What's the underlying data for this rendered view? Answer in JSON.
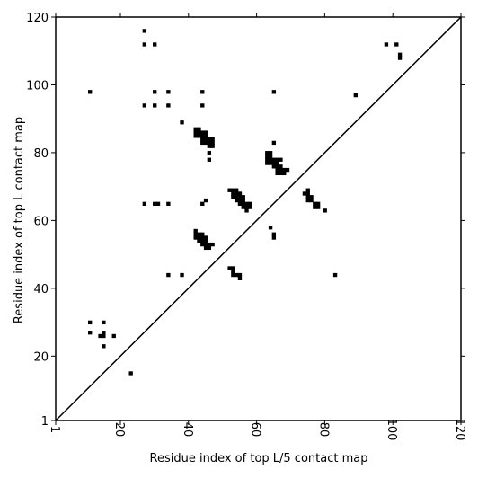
{
  "chart_data": {
    "type": "scatter",
    "title": "",
    "xlabel": "Residue index of top L/5 contact map",
    "ylabel": "Residue index of top L contact map",
    "xlim": [
      1,
      120
    ],
    "ylim": [
      1,
      120
    ],
    "xticks": [
      1,
      20,
      40,
      60,
      80,
      100,
      120
    ],
    "yticks": [
      1,
      20,
      40,
      60,
      80,
      100,
      120
    ],
    "x_tick_rotation": "vertical",
    "grid": false,
    "legend": "none",
    "marker": "square",
    "marker_color": "#000000",
    "diagonal": {
      "from": [
        1,
        1
      ],
      "to": [
        120,
        120
      ],
      "color": "#000000"
    },
    "series": [
      {
        "points": [
          [
            27,
            116
          ],
          [
            27,
            112
          ],
          [
            30,
            112
          ],
          [
            98,
            112
          ],
          [
            101,
            112
          ],
          [
            102,
            109
          ],
          [
            102,
            108
          ],
          [
            11,
            98
          ],
          [
            30,
            98
          ],
          [
            34,
            98
          ],
          [
            44,
            98
          ],
          [
            65,
            98
          ],
          [
            89,
            97
          ],
          [
            27,
            94
          ],
          [
            30,
            94
          ],
          [
            34,
            94
          ],
          [
            44,
            94
          ],
          [
            38,
            89
          ],
          [
            42,
            87
          ],
          [
            43,
            87
          ],
          [
            42,
            86
          ],
          [
            43,
            86
          ],
          [
            44,
            86
          ],
          [
            45,
            86
          ],
          [
            42,
            85
          ],
          [
            43,
            85
          ],
          [
            44,
            85
          ],
          [
            45,
            85
          ],
          [
            44,
            84
          ],
          [
            45,
            84
          ],
          [
            46,
            84
          ],
          [
            47,
            84
          ],
          [
            44,
            83
          ],
          [
            45,
            83
          ],
          [
            46,
            83
          ],
          [
            47,
            83
          ],
          [
            65,
            83
          ],
          [
            46,
            82
          ],
          [
            47,
            82
          ],
          [
            46,
            80
          ],
          [
            46,
            78
          ],
          [
            63,
            80
          ],
          [
            64,
            80
          ],
          [
            63,
            79
          ],
          [
            64,
            79
          ],
          [
            63,
            78
          ],
          [
            64,
            78
          ],
          [
            65,
            78
          ],
          [
            66,
            78
          ],
          [
            67,
            78
          ],
          [
            63,
            77
          ],
          [
            64,
            77
          ],
          [
            65,
            77
          ],
          [
            66,
            77
          ],
          [
            65,
            76
          ],
          [
            66,
            76
          ],
          [
            67,
            76
          ],
          [
            66,
            75
          ],
          [
            67,
            75
          ],
          [
            68,
            75
          ],
          [
            69,
            75
          ],
          [
            66,
            74
          ],
          [
            67,
            74
          ],
          [
            68,
            74
          ],
          [
            52,
            69
          ],
          [
            53,
            69
          ],
          [
            54,
            69
          ],
          [
            53,
            68
          ],
          [
            54,
            68
          ],
          [
            55,
            68
          ],
          [
            75,
            69
          ],
          [
            74,
            68
          ],
          [
            75,
            68
          ],
          [
            53,
            67
          ],
          [
            54,
            67
          ],
          [
            55,
            67
          ],
          [
            56,
            67
          ],
          [
            75,
            67
          ],
          [
            76,
            67
          ],
          [
            54,
            66
          ],
          [
            55,
            66
          ],
          [
            56,
            66
          ],
          [
            75,
            66
          ],
          [
            76,
            66
          ],
          [
            27,
            65
          ],
          [
            30,
            65
          ],
          [
            31,
            65
          ],
          [
            34,
            65
          ],
          [
            44,
            65
          ],
          [
            45,
            66
          ],
          [
            55,
            65
          ],
          [
            56,
            65
          ],
          [
            57,
            65
          ],
          [
            58,
            65
          ],
          [
            56,
            64
          ],
          [
            57,
            64
          ],
          [
            58,
            64
          ],
          [
            57,
            63
          ],
          [
            77,
            65
          ],
          [
            78,
            65
          ],
          [
            77,
            64
          ],
          [
            78,
            64
          ],
          [
            80,
            63
          ],
          [
            64,
            58
          ],
          [
            65,
            56
          ],
          [
            65,
            55
          ],
          [
            42,
            57
          ],
          [
            42,
            56
          ],
          [
            43,
            56
          ],
          [
            44,
            56
          ],
          [
            42,
            55
          ],
          [
            43,
            55
          ],
          [
            44,
            55
          ],
          [
            45,
            55
          ],
          [
            43,
            54
          ],
          [
            44,
            54
          ],
          [
            45,
            54
          ],
          [
            44,
            53
          ],
          [
            45,
            53
          ],
          [
            46,
            53
          ],
          [
            47,
            53
          ],
          [
            45,
            52
          ],
          [
            46,
            52
          ],
          [
            52,
            46
          ],
          [
            53,
            46
          ],
          [
            53,
            45
          ],
          [
            53,
            44
          ],
          [
            54,
            44
          ],
          [
            55,
            44
          ],
          [
            55,
            43
          ],
          [
            34,
            44
          ],
          [
            38,
            44
          ],
          [
            83,
            44
          ],
          [
            11,
            30
          ],
          [
            15,
            30
          ],
          [
            11,
            27
          ],
          [
            15,
            27
          ],
          [
            14,
            26
          ],
          [
            15,
            26
          ],
          [
            18,
            26
          ],
          [
            15,
            23
          ],
          [
            23,
            15
          ]
        ]
      }
    ]
  }
}
